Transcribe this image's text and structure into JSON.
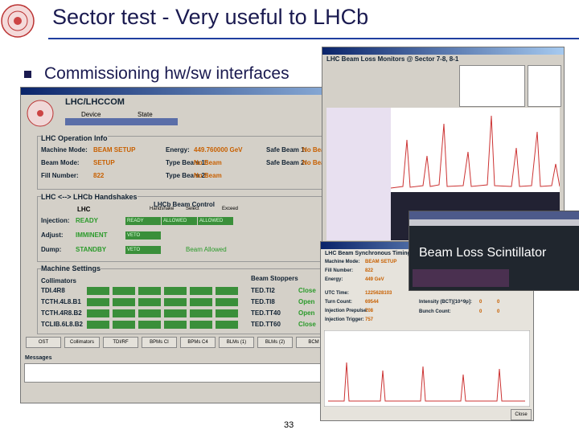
{
  "slide": {
    "title": "Sector test - Very useful to LHCb",
    "bullet": "Commissioning hw/sw interfaces",
    "page_number": "33",
    "overlay_label": "Beam Loss Scintillator"
  },
  "lhccom": {
    "window_title": "LHC/LHCCOM",
    "device_label": "Device",
    "state_label": "State",
    "op_group": "LHC Operation Info",
    "op_rows": [
      [
        "Machine Mode:",
        "BEAM SETUP",
        "Energy:",
        "449.760000 GeV",
        "Safe Beam 1:",
        "No Beam"
      ],
      [
        "Beam Mode:",
        "SETUP",
        "Type Beam 1:",
        "No Beam",
        "Safe Beam 2:",
        "No Beam"
      ],
      [
        "Fill Number:",
        "822",
        "Type Beam 2:",
        "No Beam"
      ]
    ],
    "handshake_group": "LHC <--> LHCb Handshakes",
    "beam_control": "LHCb Beam Control",
    "hs_head": [
      "LHC",
      "Handshake",
      "Select",
      "Exceed"
    ],
    "hs_rows": [
      [
        "Injection:",
        "READY",
        "READY",
        "ALLOWED",
        "ALLOWED"
      ],
      [
        "Adjust:",
        "IMMINENT",
        "VETO"
      ],
      [
        "Dump:",
        "STANDBY",
        "VETO",
        "Beam Allowed"
      ]
    ],
    "settings_group": "Machine Settings",
    "collimators_label": "Collimators",
    "collimators": [
      "TDI.4R8",
      "TCTH.4L8.B1",
      "TCTH.4R8.B2",
      "TCLIB.6L8.B2"
    ],
    "stoppers_label": "Beam Stoppers",
    "stoppers": [
      [
        "TED.TI2",
        "Close"
      ],
      [
        "TED.TI8",
        "Open"
      ],
      [
        "TED.TT40",
        "Open"
      ],
      [
        "TED.TT60",
        "Close"
      ]
    ],
    "buttons": [
      "OST",
      "Collimators",
      "TDI/RF",
      "BPMs CI",
      "BPMs C4",
      "BLMs (1)",
      "BLMs (2)",
      "BCM"
    ],
    "messages": "Messages"
  },
  "blm": {
    "window_title": "LHC Beam Loss Monitors @ Sector 7-8, 8-1"
  },
  "timing": {
    "window_title": "LHC Beam Synchronous Timing In",
    "rows": [
      [
        "Machine Mode:",
        "BEAM SETUP"
      ],
      [
        "Fill Number:",
        "822"
      ],
      [
        "Energy:",
        "449 GeV"
      ],
      [
        "UTC Time:",
        "1225628103"
      ],
      [
        "Turn Count:",
        "69544"
      ],
      [
        "Injection Prepulse:",
        "708"
      ],
      [
        "Injection Trigger:",
        "757"
      ]
    ],
    "intensity": [
      "Intensity (BCT)[10^9p]:",
      "0",
      "0"
    ],
    "bunch": [
      "Bunch Count:",
      "0",
      "0"
    ],
    "close": "Close"
  }
}
